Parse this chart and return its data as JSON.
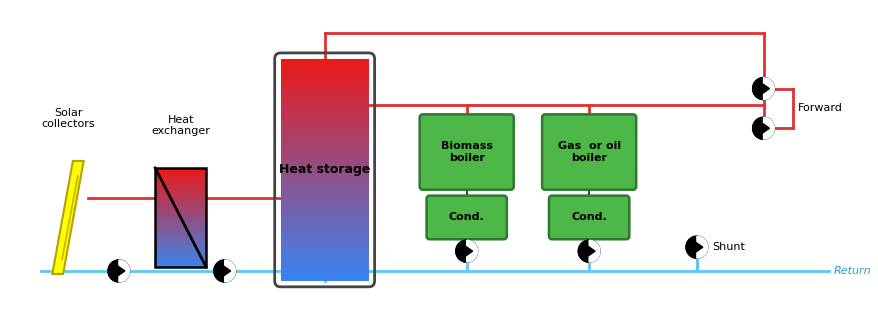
{
  "bg_color": "#ffffff",
  "pipe_return_color": "#5bc8f5",
  "pipe_forward_color": "#e03030",
  "pipe_lw": 2.0,
  "green_color": "#4db847",
  "green_edge": "#2d7a2d",
  "solar_label": "Solar\ncollectors",
  "hex_label": "Heat\nexchanger",
  "storage_label": "Heat storage",
  "biomass_label": "Biomass\nboiler",
  "gas_label": "Gas  or oil\nboiler",
  "cond1_label": "Cond.",
  "cond2_label": "Cond.",
  "forward_label": "Forward",
  "return_label": "Return",
  "shunt_label": "Shunt"
}
